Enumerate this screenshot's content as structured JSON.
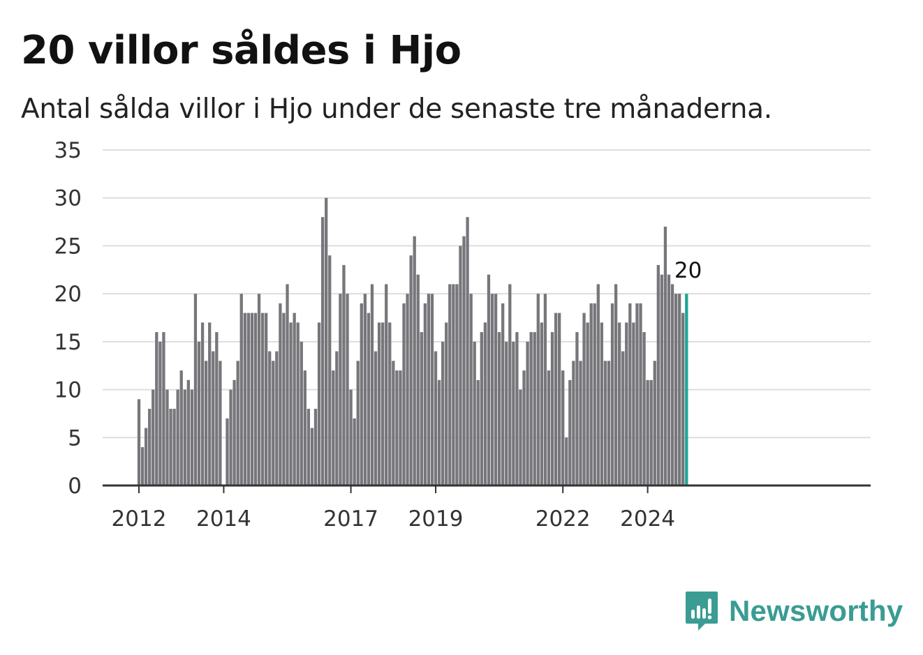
{
  "title": "20 villor såldes i Hjo",
  "subtitle": "Antal sålda villor i Hjo under de senaste tre månaderna.",
  "brand": {
    "name": "Newsworthy",
    "icon": "newsworthy-logo-icon",
    "color": "#3a9c92"
  },
  "colors": {
    "bar": "#76767b",
    "highlight": "#1fa595",
    "grid": "#dddddd",
    "axis": "#333333"
  },
  "chart_data": {
    "type": "bar",
    "title": "20 villor såldes i Hjo",
    "subtitle": "Antal sålda villor i Hjo under de senaste tre månaderna.",
    "ylim": [
      0,
      35
    ],
    "yticks": [
      0,
      5,
      10,
      15,
      20,
      25,
      30,
      35
    ],
    "xtick_labels": [
      "2012",
      "2014",
      "2017",
      "2019",
      "2022",
      "2024"
    ],
    "grid": true,
    "first_period": "2012-01",
    "last_period": "2024-10",
    "highlight_last": true,
    "last_value_label": "20",
    "values": [
      9,
      4,
      6,
      8,
      10,
      16,
      15,
      16,
      10,
      8,
      8,
      10,
      12,
      10,
      11,
      10,
      20,
      15,
      17,
      13,
      17,
      14,
      16,
      13,
      null,
      7,
      10,
      11,
      13,
      20,
      18,
      18,
      18,
      18,
      20,
      18,
      18,
      14,
      13,
      14,
      19,
      18,
      21,
      17,
      18,
      17,
      15,
      12,
      8,
      6,
      8,
      17,
      28,
      30,
      24,
      12,
      14,
      20,
      23,
      20,
      10,
      7,
      13,
      19,
      20,
      18,
      21,
      14,
      17,
      17,
      21,
      17,
      13,
      12,
      12,
      19,
      20,
      24,
      26,
      22,
      16,
      19,
      20,
      20,
      14,
      11,
      15,
      17,
      21,
      21,
      21,
      25,
      26,
      28,
      20,
      15,
      11,
      16,
      17,
      22,
      20,
      20,
      16,
      19,
      15,
      21,
      15,
      16,
      10,
      12,
      15,
      16,
      16,
      20,
      17,
      20,
      12,
      16,
      18,
      18,
      12,
      5,
      11,
      13,
      16,
      13,
      18,
      17,
      19,
      19,
      21,
      17,
      13,
      13,
      19,
      21,
      17,
      14,
      17,
      19,
      17,
      19,
      19,
      16,
      11,
      11,
      13,
      23,
      22,
      27,
      22,
      21,
      20,
      20,
      18,
      20
    ]
  }
}
